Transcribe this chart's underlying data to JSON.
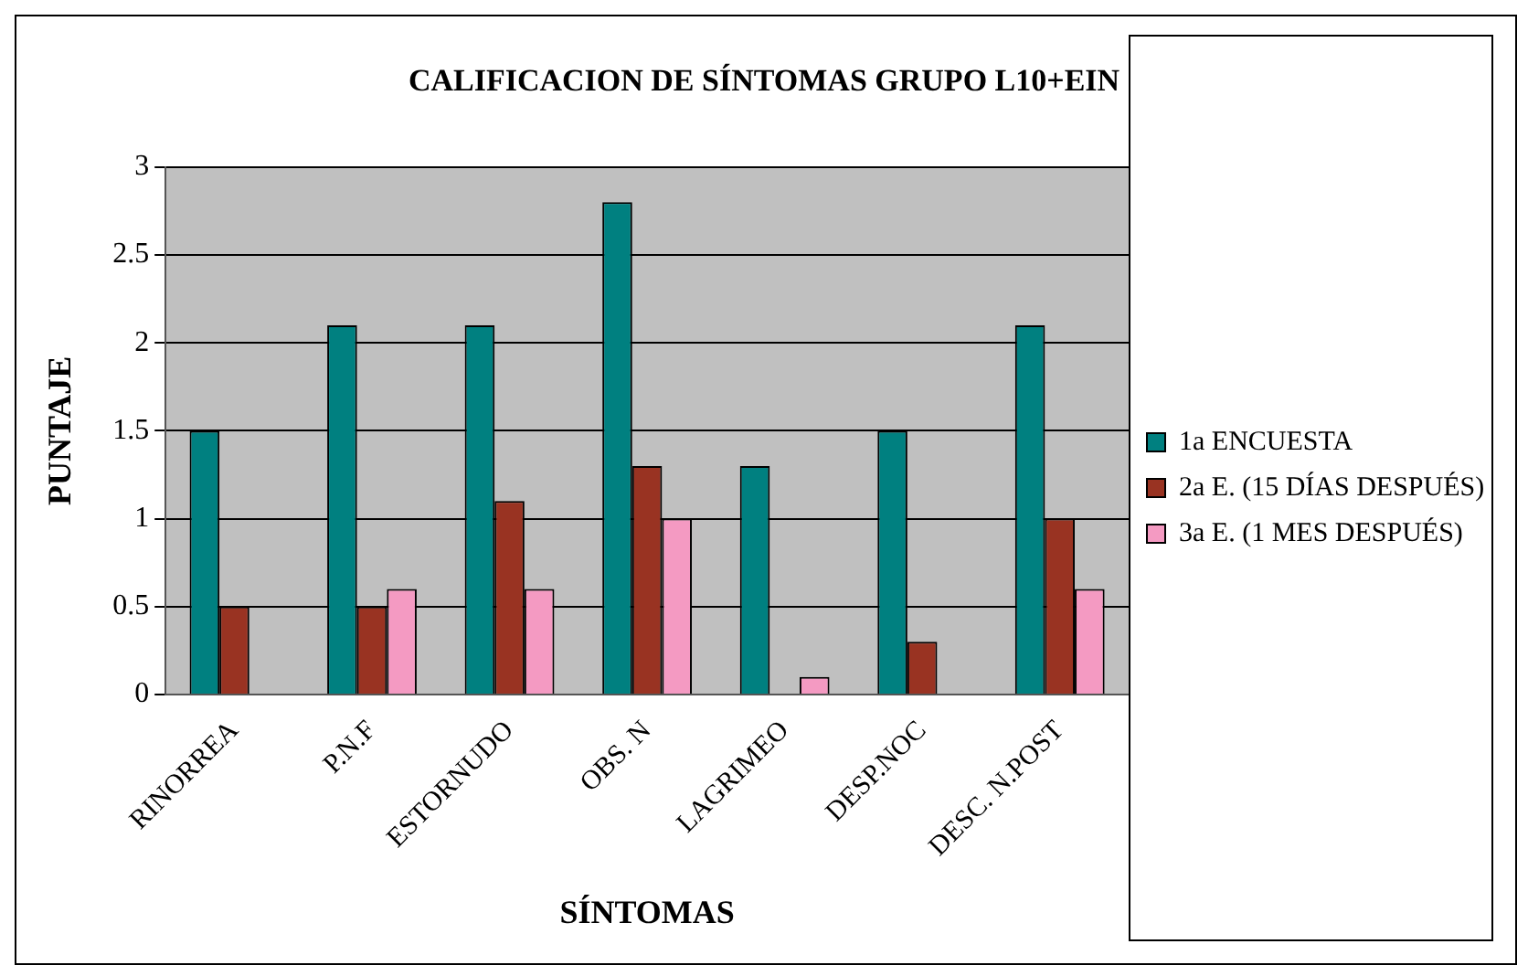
{
  "chart_data": {
    "type": "bar",
    "title": "CALIFICACION DE SÍNTOMAS GRUPO L10+EIN",
    "xlabel": "SÍNTOMAS",
    "ylabel": "PUNTAJE",
    "categories": [
      "RINORREA",
      "P.N.F",
      "ESTORNUDO",
      "OBS. N",
      "LAGRIMEO",
      "DESP.NOC",
      "DESC. N.POST"
    ],
    "series": [
      {
        "name": "1a ENCUESTA",
        "color": "#008080",
        "values": [
          1.5,
          2.1,
          2.1,
          2.8,
          1.3,
          1.5,
          2.1
        ]
      },
      {
        "name": "2a E. (15 DÍAS DESPUÉS)",
        "color": "#993322",
        "values": [
          0.5,
          0.5,
          1.1,
          1.3,
          0,
          0.3,
          1.0
        ]
      },
      {
        "name": "3a E. (1 MES DESPUÉS)",
        "color": "#f49ac2",
        "values": [
          0,
          0.6,
          0.6,
          1.0,
          0.1,
          0,
          0.6
        ]
      }
    ],
    "ylim": [
      0,
      3
    ],
    "yticks": [
      0,
      0.5,
      1,
      1.5,
      2,
      2.5,
      3
    ],
    "grid": "y",
    "legend": "right"
  }
}
